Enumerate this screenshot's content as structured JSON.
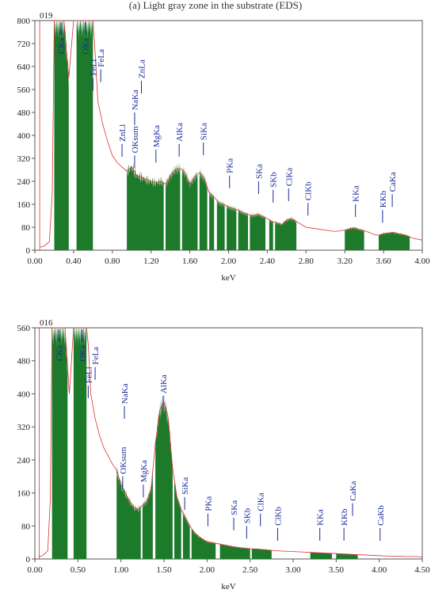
{
  "header": {
    "caption_fragment": "(a) Light gray zone in the substrate (EDS)"
  },
  "chart_data": [
    {
      "type": "area",
      "corner_label": "019",
      "xlabel": "keV",
      "ylabel": "",
      "xlim": [
        0,
        4.0
      ],
      "ylim": [
        0,
        800
      ],
      "x_ticks": [
        "0.00",
        "0.40",
        "0.80",
        "1.20",
        "1.60",
        "2.00",
        "2.40",
        "2.80",
        "3.20",
        "3.60",
        "4.00"
      ],
      "y_ticks": [
        "0",
        "80",
        "160",
        "240",
        "320",
        "400",
        "480",
        "560",
        "640",
        "720",
        "800"
      ],
      "fill_color": "#1d7a2a",
      "line_color": "#e03030",
      "x": [
        0.05,
        0.1,
        0.15,
        0.18,
        0.2,
        0.22,
        0.25,
        0.28,
        0.3,
        0.35,
        0.4,
        0.43,
        0.45,
        0.5,
        0.55,
        0.6,
        0.62,
        0.65,
        0.7,
        0.75,
        0.8,
        0.85,
        0.9,
        0.95,
        1.0,
        1.05,
        1.1,
        1.15,
        1.2,
        1.25,
        1.3,
        1.35,
        1.4,
        1.45,
        1.5,
        1.55,
        1.6,
        1.65,
        1.7,
        1.75,
        1.8,
        1.85,
        1.9,
        1.95,
        2.0,
        2.05,
        2.1,
        2.15,
        2.2,
        2.25,
        2.3,
        2.35,
        2.4,
        2.45,
        2.5,
        2.55,
        2.6,
        2.65,
        2.7,
        2.75,
        2.8,
        2.9,
        3.0,
        3.1,
        3.2,
        3.25,
        3.3,
        3.35,
        3.4,
        3.45,
        3.5,
        3.55,
        3.6,
        3.65,
        3.7,
        3.75,
        3.8,
        3.85,
        3.9,
        4.0
      ],
      "y": [
        10,
        15,
        30,
        200,
        800,
        800,
        800,
        800,
        800,
        600,
        800,
        800,
        800,
        800,
        800,
        800,
        700,
        520,
        440,
        380,
        330,
        305,
        290,
        275,
        290,
        260,
        255,
        245,
        240,
        235,
        240,
        230,
        260,
        280,
        285,
        270,
        230,
        255,
        270,
        250,
        200,
        185,
        165,
        160,
        150,
        145,
        140,
        130,
        125,
        120,
        125,
        118,
        110,
        100,
        95,
        90,
        105,
        110,
        100,
        90,
        80,
        75,
        70,
        65,
        70,
        75,
        78,
        72,
        68,
        62,
        55,
        52,
        58,
        60,
        62,
        58,
        55,
        50,
        42,
        35
      ],
      "fills": [
        [
          0.2,
          0.35
        ],
        [
          0.43,
          0.6
        ],
        [
          0.95,
          1.33
        ],
        [
          1.35,
          1.5
        ],
        [
          1.52,
          1.68
        ],
        [
          1.7,
          1.78
        ],
        [
          1.8,
          1.85
        ],
        [
          1.88,
          1.96
        ],
        [
          1.98,
          2.08
        ],
        [
          2.1,
          2.2
        ],
        [
          2.22,
          2.38
        ],
        [
          2.42,
          2.46
        ],
        [
          2.48,
          2.7
        ],
        [
          3.2,
          3.4
        ],
        [
          3.55,
          3.87
        ]
      ],
      "peaks": [
        {
          "label": "CKa",
          "x": 0.27,
          "y": 760,
          "type": "inbar"
        },
        {
          "label": "OKa",
          "x": 0.52,
          "y": 760,
          "type": "inbar"
        },
        {
          "label": "FeLl",
          "x": 0.6,
          "y": 600
        },
        {
          "label": "FeLa",
          "x": 0.68,
          "y": 630
        },
        {
          "label": "ZnLl",
          "x": 0.9,
          "y": 370
        },
        {
          "label": "OKsum",
          "x": 1.03,
          "y": 330
        },
        {
          "label": "NaKa",
          "x": 1.03,
          "y": 480
        },
        {
          "label": "ZnLa",
          "x": 1.1,
          "y": 590
        },
        {
          "label": "MgKa",
          "x": 1.25,
          "y": 350
        },
        {
          "label": "AlKa",
          "x": 1.49,
          "y": 370
        },
        {
          "label": "SiKa",
          "x": 1.74,
          "y": 375
        },
        {
          "label": "PKa",
          "x": 2.01,
          "y": 260
        },
        {
          "label": "SKa",
          "x": 2.31,
          "y": 240
        },
        {
          "label": "SKb",
          "x": 2.46,
          "y": 210
        },
        {
          "label": "ClKa",
          "x": 2.62,
          "y": 215
        },
        {
          "label": "ClKb",
          "x": 2.82,
          "y": 165
        },
        {
          "label": "KKa",
          "x": 3.31,
          "y": 160
        },
        {
          "label": "KKb",
          "x": 3.59,
          "y": 140
        },
        {
          "label": "CaKa",
          "x": 3.69,
          "y": 195
        }
      ]
    },
    {
      "type": "area",
      "corner_label": "016",
      "xlabel": "keV",
      "ylabel": "",
      "xlim": [
        0,
        4.5
      ],
      "ylim": [
        0,
        560
      ],
      "x_ticks": [
        "0.00",
        "0.50",
        "1.00",
        "1.50",
        "2.00",
        "2.50",
        "3.00",
        "3.50",
        "4.00",
        "4.50"
      ],
      "y_ticks": [
        "0",
        "80",
        "160",
        "240",
        "320",
        "400",
        "480",
        "560"
      ],
      "fill_color": "#1d7a2a",
      "line_color": "#e03030",
      "x": [
        0.05,
        0.1,
        0.15,
        0.18,
        0.2,
        0.22,
        0.27,
        0.3,
        0.35,
        0.4,
        0.45,
        0.5,
        0.55,
        0.6,
        0.62,
        0.65,
        0.7,
        0.75,
        0.8,
        0.85,
        0.9,
        0.95,
        1.0,
        1.05,
        1.1,
        1.15,
        1.2,
        1.25,
        1.3,
        1.35,
        1.4,
        1.45,
        1.5,
        1.55,
        1.6,
        1.65,
        1.7,
        1.75,
        1.8,
        1.85,
        1.9,
        1.95,
        2.0,
        2.1,
        2.2,
        2.3,
        2.4,
        2.5,
        2.6,
        2.7,
        2.8,
        2.9,
        3.0,
        3.1,
        3.2,
        3.3,
        3.4,
        3.5,
        3.6,
        3.7,
        3.8,
        3.9,
        4.0,
        4.1,
        4.2,
        4.3,
        4.4,
        4.5
      ],
      "y": [
        5,
        10,
        20,
        150,
        560,
        560,
        560,
        560,
        560,
        400,
        560,
        560,
        560,
        560,
        520,
        400,
        340,
        300,
        270,
        250,
        230,
        215,
        180,
        160,
        140,
        125,
        120,
        130,
        140,
        170,
        280,
        360,
        380,
        340,
        220,
        150,
        120,
        100,
        80,
        65,
        55,
        48,
        42,
        38,
        34,
        30,
        27,
        25,
        24,
        22,
        20,
        19,
        18,
        17,
        16,
        15,
        14,
        13,
        12,
        11,
        10,
        9,
        8,
        7,
        7,
        6,
        6,
        5
      ],
      "fills": [
        [
          0.2,
          0.38
        ],
        [
          0.45,
          0.6
        ],
        [
          0.95,
          1.23
        ],
        [
          1.25,
          1.37
        ],
        [
          1.4,
          1.6
        ],
        [
          1.62,
          1.7
        ],
        [
          1.72,
          1.8
        ],
        [
          1.82,
          2.1
        ],
        [
          2.15,
          2.5
        ],
        [
          2.52,
          2.75
        ],
        [
          3.2,
          3.45
        ],
        [
          3.5,
          3.75
        ]
      ],
      "peaks": [
        {
          "label": "CKa",
          "x": 0.28,
          "y": 525,
          "type": "inbar"
        },
        {
          "label": "OKa",
          "x": 0.55,
          "y": 525,
          "type": "inbar"
        },
        {
          "label": "FeLl",
          "x": 0.62,
          "y": 420
        },
        {
          "label": "FeLa",
          "x": 0.7,
          "y": 465
        },
        {
          "label": "OKsum",
          "x": 1.02,
          "y": 200
        },
        {
          "label": "NaKa",
          "x": 1.04,
          "y": 370
        },
        {
          "label": "MgKa",
          "x": 1.26,
          "y": 180
        },
        {
          "label": "AlKa",
          "x": 1.49,
          "y": 395
        },
        {
          "label": "SiKa",
          "x": 1.74,
          "y": 150
        },
        {
          "label": "PKa",
          "x": 2.01,
          "y": 110
        },
        {
          "label": "SKa",
          "x": 2.31,
          "y": 100
        },
        {
          "label": "SKb",
          "x": 2.46,
          "y": 80
        },
        {
          "label": "ClKa",
          "x": 2.62,
          "y": 110
        },
        {
          "label": "ClKb",
          "x": 2.82,
          "y": 75
        },
        {
          "label": "KKa",
          "x": 3.31,
          "y": 75
        },
        {
          "label": "KKb",
          "x": 3.59,
          "y": 75
        },
        {
          "label": "CaKa",
          "x": 3.69,
          "y": 135
        },
        {
          "label": "CaKb",
          "x": 4.01,
          "y": 75
        }
      ]
    }
  ]
}
